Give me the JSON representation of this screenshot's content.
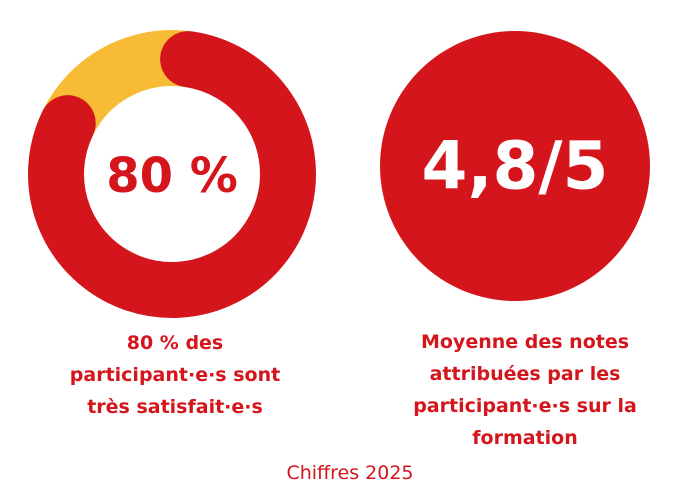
{
  "colors": {
    "primary": "#d4161c",
    "secondary": "#f7bb35",
    "background": "#ffffff",
    "center_text_on_primary": "#ffffff"
  },
  "chart_data": [
    {
      "type": "pie",
      "variant": "donut",
      "center_label": "80 %",
      "slices": [
        {
          "value": 80,
          "color": "#d4161c"
        },
        {
          "value": 20,
          "color": "#f7bb35"
        }
      ],
      "caption_lines": [
        "80 % des",
        "participant·e·s sont",
        "très satisfait·e·s"
      ]
    },
    {
      "type": "pie",
      "variant": "disc",
      "center_label": "4,8/5",
      "value": 4.8,
      "max": 5,
      "color": "#d4161c",
      "caption_lines": [
        "Moyenne des notes",
        "attribuées par les",
        "participant·e·s sur la",
        "formation"
      ]
    }
  ],
  "footer": "Chiffres 2025"
}
